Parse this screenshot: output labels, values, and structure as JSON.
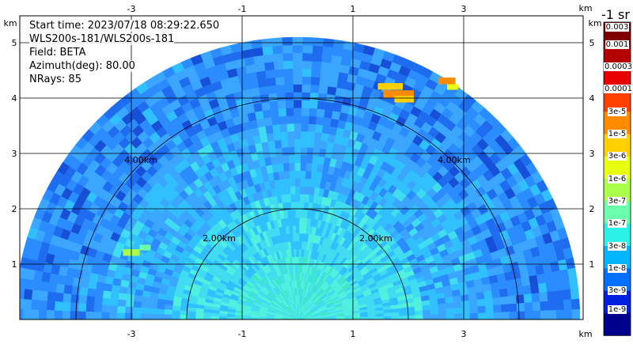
{
  "info": {
    "start_time": "Start time: 2023/07/18 08:29:22.650",
    "scan": "WLS200s-181/WLS200s-181",
    "field": "Field: BETA",
    "azimuth": "Azimuth(deg): 80.00",
    "nrays": "NRays: 85"
  },
  "chart_data": {
    "type": "heatmap",
    "title": "",
    "xlabel": "km",
    "ylabel": "km",
    "xlim": [
      -5.2,
      5.2
    ],
    "ylim": [
      0,
      6.0
    ],
    "x_ticks": [
      -3,
      -1,
      1,
      3
    ],
    "y_ticks": [
      1,
      2,
      3,
      4,
      5
    ],
    "x_tick_labels": [
      "-3",
      "-1",
      "1",
      "3"
    ],
    "y_tick_labels": [
      "1",
      "2",
      "3",
      "4",
      "5"
    ],
    "axis_unit_label": "km",
    "grid": true,
    "range_rings": [
      {
        "radius_km": 2.0,
        "label": "2.00km"
      },
      {
        "radius_km": 4.0,
        "label": "4.00km"
      }
    ],
    "max_range_km": 5.1,
    "elevation_span_deg": [
      0,
      180
    ],
    "colorbar": {
      "title": "-1 sr",
      "labels": [
        "0.003",
        "0.001",
        "0.0003",
        "0.0001",
        "3e-5",
        "1e-5",
        "3e-6",
        "1e-6",
        "3e-7",
        "1e-7",
        "3e-8",
        "1e-8",
        "3e-9",
        "1e-9"
      ],
      "colors": [
        "#7f0000",
        "#b30000",
        "#e60000",
        "#ff4000",
        "#ff8c00",
        "#ffd000",
        "#e8ff10",
        "#aaff4a",
        "#6affaa",
        "#2af0e6",
        "#00b4ff",
        "#0070ff",
        "#0020e0",
        "#00008f"
      ]
    }
  }
}
